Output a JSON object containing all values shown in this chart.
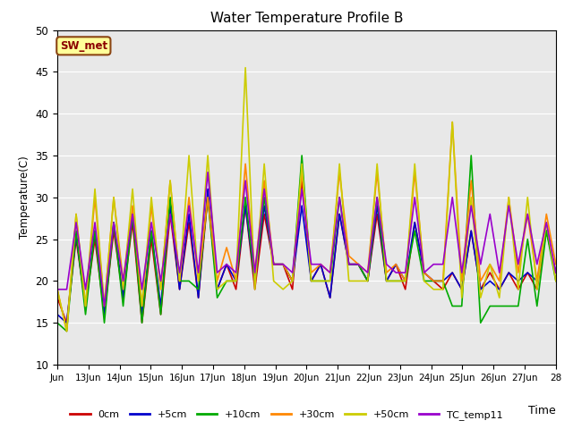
{
  "title": "Water Temperature Profile B",
  "ylabel": "Temperature(C)",
  "time_label": "Time",
  "ylim": [
    10,
    50
  ],
  "bg_color": "#e8e8e8",
  "annotation_text": "SW_met",
  "annotation_color": "#8b0000",
  "annotation_bg": "#ffff99",
  "annotation_border": "#8b4513",
  "xtick_labels": [
    "Jun",
    "13Jun",
    "14Jun",
    "15Jun",
    "16Jun",
    "17Jun",
    "18Jun",
    "19Jun",
    "20Jun",
    "21Jun",
    "22Jun",
    "23Jun",
    "24Jun",
    "25Jun",
    "26Jun",
    "27Jun",
    "28"
  ],
  "series": {
    "0cm": {
      "color": "#cc0000",
      "lw": 1.2
    },
    "+5cm": {
      "color": "#0000cc",
      "lw": 1.2
    },
    "+10cm": {
      "color": "#00aa00",
      "lw": 1.2
    },
    "+30cm": {
      "color": "#ff8800",
      "lw": 1.2
    },
    "+50cm": {
      "color": "#cccc00",
      "lw": 1.2
    },
    "TC_temp11": {
      "color": "#9900cc",
      "lw": 1.2
    }
  },
  "data_0cm": [
    18,
    15,
    25,
    17,
    25,
    16,
    26,
    18,
    27,
    15,
    25,
    16,
    28,
    19,
    27,
    18,
    30,
    19,
    22,
    19,
    29,
    19,
    28,
    22,
    22,
    19,
    32,
    20,
    22,
    18,
    28,
    22,
    22,
    20,
    28,
    20,
    22,
    19,
    27,
    21,
    20,
    19,
    21,
    19,
    26,
    19,
    21,
    19,
    21,
    19,
    21,
    19,
    26,
    21
  ],
  "data_5cm": [
    16,
    15,
    25.5,
    17,
    26,
    16,
    27,
    18,
    28,
    16,
    26,
    17,
    29,
    19,
    28,
    18,
    31,
    19,
    22,
    20,
    29,
    20,
    29,
    22,
    22,
    20,
    29,
    20,
    22,
    18,
    28,
    22,
    22,
    20,
    29,
    20,
    22,
    20,
    27,
    21,
    20,
    20,
    21,
    19,
    26,
    19,
    20,
    19,
    21,
    20,
    21,
    20,
    26,
    21
  ],
  "data_10cm": [
    15,
    14,
    26,
    16,
    26,
    15,
    27,
    17,
    28,
    15,
    26,
    16,
    30,
    20,
    20,
    19,
    30,
    18,
    20,
    20,
    30,
    20,
    30,
    22,
    22,
    20,
    35,
    20,
    20,
    20,
    30,
    22,
    22,
    20,
    30,
    20,
    20,
    20,
    26,
    20,
    20,
    20,
    17,
    17,
    35,
    15,
    17,
    17,
    17,
    17,
    25,
    17,
    26,
    20
  ],
  "data_30cm": [
    19,
    14,
    28,
    17,
    30,
    17,
    30,
    20,
    29,
    17,
    29,
    19,
    32,
    20,
    30,
    20,
    30,
    20,
    24,
    20,
    34,
    21,
    32,
    22,
    22,
    20,
    33,
    21,
    22,
    21,
    33,
    23,
    22,
    21,
    33,
    21,
    22,
    20,
    33,
    21,
    20,
    20,
    39,
    20,
    32,
    20,
    22,
    20,
    30,
    21,
    28,
    20,
    28,
    22
  ],
  "data_50cm": [
    19,
    14,
    28,
    17,
    31,
    17,
    30,
    19,
    31,
    17,
    30,
    19,
    32,
    20,
    35,
    20,
    35,
    19,
    20,
    20,
    45.5,
    19,
    34,
    20,
    19,
    20,
    34,
    20,
    20,
    20,
    34,
    20,
    20,
    20,
    34,
    20,
    20,
    20,
    34,
    20,
    19,
    19,
    39,
    18,
    30,
    18,
    22,
    18,
    30,
    19,
    30,
    19,
    27,
    20
  ],
  "data_tc": [
    19,
    19,
    27,
    19,
    27,
    17,
    27,
    20,
    28,
    19,
    27,
    20,
    28,
    21,
    29,
    21,
    33,
    21,
    22,
    21,
    32,
    21,
    31,
    22,
    22,
    21,
    31,
    22,
    22,
    21,
    30,
    22,
    22,
    21,
    30,
    22,
    21,
    21,
    30,
    21,
    22,
    22,
    30,
    21,
    29,
    22,
    28,
    21,
    29,
    22,
    28,
    22,
    27,
    21
  ]
}
